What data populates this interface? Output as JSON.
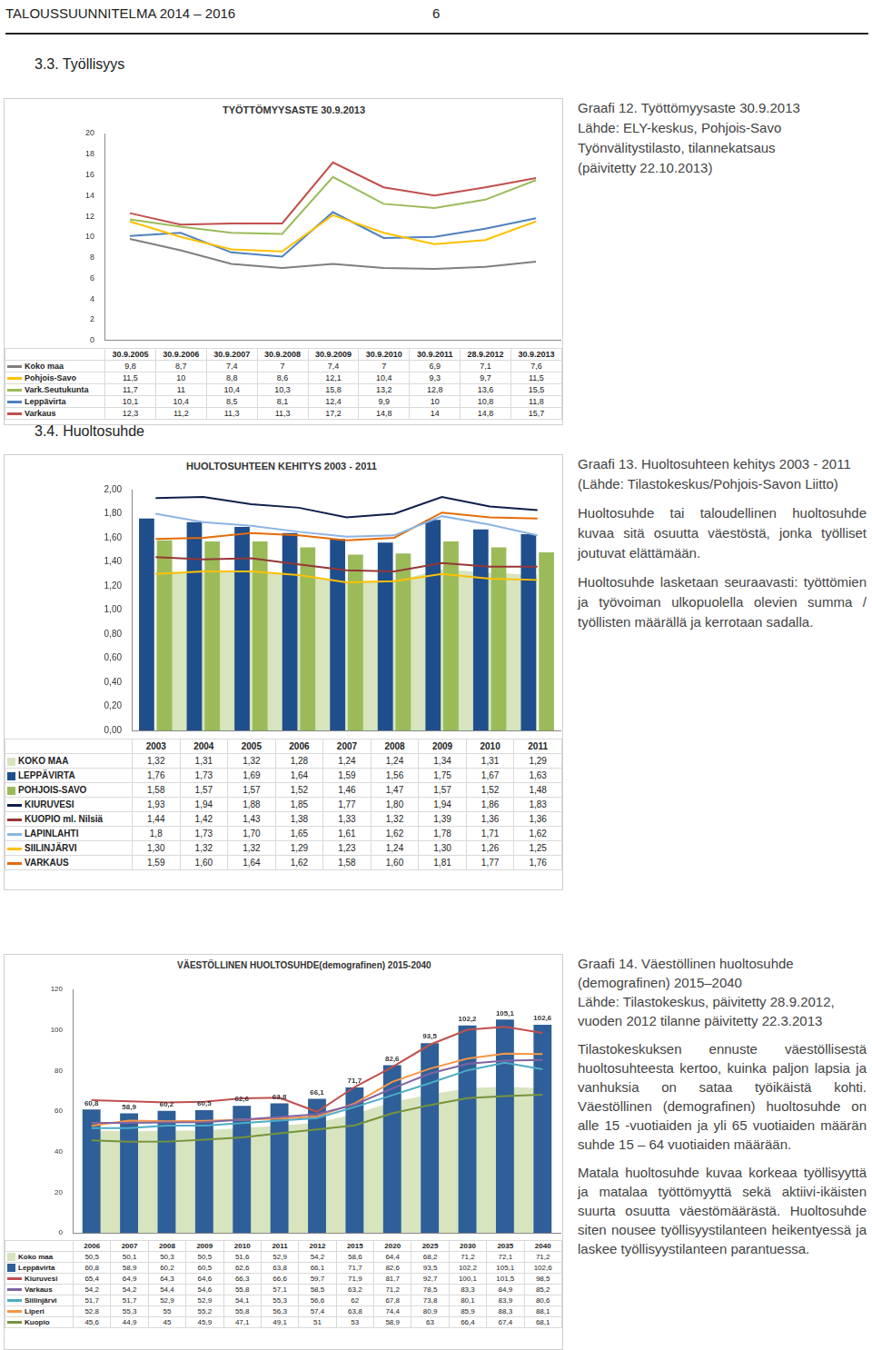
{
  "document": {
    "header": {
      "title": "TALOUSSUUNNITELMA 2014 – 2016",
      "page": "6"
    },
    "headings": [
      "3.3. Työllisyys",
      "3.4. Huoltosuhde"
    ],
    "captions": [
      {
        "lines": [
          "Graafi 12. Työttömyysaste 30.9.2013",
          "Lähde: ELY-keskus, Pohjois-Savo",
          "Työnvälitystilasto, tilannekatsaus",
          "(päivitetty 22.10.2013)"
        ],
        "paragraphs": []
      },
      {
        "lines": [
          "Graafi 13. Huoltosuhteen kehitys 2003 - 2011",
          "(Lähde: Tilastokeskus/Pohjois-Savon Liitto)"
        ],
        "paragraphs": [
          "Huoltosuhde tai taloudellinen huoltosuhde kuvaa sitä osuutta väestöstä, jonka työlliset joutuvat elättämään.",
          "Huoltosuhde lasketaan seuraavasti: työttömien ja työvoiman ulkopuolella olevien summa / työllisten määrällä ja kerrotaan sadalla."
        ]
      },
      {
        "lines": [
          "Graafi 14. Väestöllinen huoltosuhde (demografinen) 2015–2040",
          "Lähde: Tilastokeskus, päivitetty 28.9.2012, vuoden 2012 tilanne päivitetty 22.3.2013"
        ],
        "paragraphs": [
          "Tilastokeskuksen ennuste väestöllisestä huoltosuhteesta kertoo, kuinka paljon lapsia ja vanhuksia on sataa työikäistä kohti. Väestöllinen (demografinen) huoltosuhde on alle 15 -vuotiaiden ja yli 65 vuotiaiden määrän suhde 15 – 64 vuotiaiden määrään.",
          "Matala huoltosuhde kuvaa korkeaa työllisyyttä ja matalaa työttömyyttä sekä aktiivi-ikäisten suurta osuutta väestömäärästä. Huoltosuhde siten nousee työllisyystilanteen heikentyessä ja laskee työllisyystilanteen parantuessa."
        ]
      }
    ]
  },
  "chart_data": [
    {
      "type": "line",
      "title": "TYÖTTÖMYYSASTE 30.9.2013",
      "categories": [
        "30.9.2005",
        "30.9.2006",
        "30.9.2007",
        "30.9.2008",
        "30.9.2009",
        "30.9.2010",
        "30.9.2011",
        "28.9.2012",
        "30.9.2013"
      ],
      "series": [
        {
          "name": "Koko maa",
          "color": "#7f7f7f",
          "values": [
            9.8,
            8.7,
            7.4,
            7,
            7.4,
            7,
            6.9,
            7.1,
            7.6
          ],
          "value_labels": [
            "9,8",
            "8,7",
            "7,4",
            "7",
            "7,4",
            "7",
            "6,9",
            "7,1",
            "7,6"
          ]
        },
        {
          "name": "Pohjois-Savo",
          "color": "#ffc000",
          "values": [
            11.5,
            10,
            8.8,
            8.6,
            12.1,
            10.4,
            9.3,
            9.7,
            11.5
          ],
          "value_labels": [
            "11,5",
            "10",
            "8,8",
            "8,6",
            "12,1",
            "10,4",
            "9,3",
            "9,7",
            "11,5"
          ]
        },
        {
          "name": "Vark.Seutukunta",
          "color": "#9bbb59",
          "values": [
            11.7,
            11,
            10.4,
            10.3,
            15.8,
            13.2,
            12.8,
            13.6,
            15.5
          ],
          "value_labels": [
            "11,7",
            "11",
            "10,4",
            "10,3",
            "15,8",
            "13,2",
            "12,8",
            "13,6",
            "15,5"
          ]
        },
        {
          "name": "Leppävirta",
          "color": "#4f81bd",
          "values": [
            10.1,
            10.4,
            8.5,
            8.1,
            12.4,
            9.9,
            10,
            10.8,
            11.8
          ],
          "value_labels": [
            "10,1",
            "10,4",
            "8,5",
            "8,1",
            "12,4",
            "9,9",
            "10",
            "10,8",
            "11,8"
          ]
        },
        {
          "name": "Varkaus",
          "color": "#c0504d",
          "values": [
            12.3,
            11.2,
            11.3,
            11.3,
            17.2,
            14.8,
            14,
            14.8,
            15.7
          ],
          "value_labels": [
            "12,3",
            "11,2",
            "11,3",
            "11,3",
            "17,2",
            "14,8",
            "14",
            "14,8",
            "15,7"
          ]
        }
      ],
      "ylim": [
        0,
        20
      ],
      "yticks": [
        0,
        2,
        4,
        6,
        8,
        10,
        12,
        14,
        16,
        18,
        20
      ],
      "grid": false,
      "legend": "bottom"
    },
    {
      "type": "bar",
      "title": "HUOLTOSUHTEEN KEHITYS 2003 - 2011",
      "categories": [
        "2003",
        "2004",
        "2005",
        "2006",
        "2007",
        "2008",
        "2009",
        "2010",
        "2011"
      ],
      "series": [
        {
          "name": "KOKO MAA",
          "type": "area",
          "color": "#d7e4bd",
          "values": [
            1.32,
            1.31,
            1.32,
            1.28,
            1.24,
            1.24,
            1.34,
            1.31,
            1.29
          ],
          "value_labels": [
            "1,32",
            "1,31",
            "1,32",
            "1,28",
            "1,24",
            "1,24",
            "1,34",
            "1,31",
            "1,29"
          ]
        },
        {
          "name": "LEPPÄVIRTA",
          "type": "bar",
          "color": "#1f4e8c",
          "values": [
            1.76,
            1.73,
            1.69,
            1.64,
            1.59,
            1.56,
            1.75,
            1.67,
            1.63
          ],
          "value_labels": [
            "1,76",
            "1,73",
            "1,69",
            "1,64",
            "1,59",
            "1,56",
            "1,75",
            "1,67",
            "1,63"
          ]
        },
        {
          "name": "POHJOIS-SAVO",
          "type": "bar",
          "color": "#9bbb59",
          "values": [
            1.58,
            1.57,
            1.57,
            1.52,
            1.46,
            1.47,
            1.57,
            1.52,
            1.48
          ],
          "value_labels": [
            "1,58",
            "1,57",
            "1,57",
            "1,52",
            "1,46",
            "1,47",
            "1,57",
            "1,52",
            "1,48"
          ]
        },
        {
          "name": "KIURUVESI",
          "type": "line",
          "color": "#0f1f4b",
          "values": [
            1.93,
            1.94,
            1.88,
            1.85,
            1.77,
            1.8,
            1.94,
            1.86,
            1.83
          ],
          "value_labels": [
            "1,93",
            "1,94",
            "1,88",
            "1,85",
            "1,77",
            "1,80",
            "1,94",
            "1,86",
            "1,83"
          ]
        },
        {
          "name": "KUOPIO ml. Nilsiä",
          "type": "line",
          "color": "#953735",
          "values": [
            1.44,
            1.42,
            1.43,
            1.38,
            1.33,
            1.32,
            1.39,
            1.36,
            1.36
          ],
          "value_labels": [
            "1,44",
            "1,42",
            "1,43",
            "1,38",
            "1,33",
            "1,32",
            "1,39",
            "1,36",
            "1,36"
          ]
        },
        {
          "name": "LAPINLAHTI",
          "type": "line",
          "color": "#8db4e2",
          "values": [
            1.8,
            1.73,
            1.7,
            1.65,
            1.61,
            1.62,
            1.78,
            1.71,
            1.62
          ],
          "value_labels": [
            "1,8",
            "1,73",
            "1,70",
            "1,65",
            "1,61",
            "1,62",
            "1,78",
            "1,71",
            "1,62"
          ]
        },
        {
          "name": "SIILINJÄRVI",
          "type": "line",
          "color": "#ffc000",
          "values": [
            1.3,
            1.32,
            1.32,
            1.29,
            1.23,
            1.24,
            1.3,
            1.26,
            1.25
          ],
          "value_labels": [
            "1,30",
            "1,32",
            "1,32",
            "1,29",
            "1,23",
            "1,24",
            "1,30",
            "1,26",
            "1,25"
          ]
        },
        {
          "name": "VARKAUS",
          "type": "line",
          "color": "#e46c0a",
          "values": [
            1.59,
            1.6,
            1.64,
            1.62,
            1.58,
            1.6,
            1.81,
            1.77,
            1.76
          ],
          "value_labels": [
            "1,59",
            "1,60",
            "1,64",
            "1,62",
            "1,58",
            "1,60",
            "1,81",
            "1,77",
            "1,76"
          ]
        }
      ],
      "ylim": [
        0,
        2
      ],
      "yticks": [
        {
          "value": 0,
          "label": "0,00"
        },
        {
          "value": 0.2,
          "label": "0,20"
        },
        {
          "value": 0.4,
          "label": "0,40"
        },
        {
          "value": 0.6,
          "label": "0,60"
        },
        {
          "value": 0.8,
          "label": "0,80"
        },
        {
          "value": 1,
          "label": "1,00"
        },
        {
          "value": 1.2,
          "label": "1,20"
        },
        {
          "value": 1.4,
          "label": "1,40"
        },
        {
          "value": 1.6,
          "label": "1,60"
        },
        {
          "value": 1.8,
          "label": "1,80"
        },
        {
          "value": 2,
          "label": "2,00"
        }
      ],
      "grid": false,
      "legend": "bottom"
    },
    {
      "type": "bar",
      "title": "VÄESTÖLLINEN HUOLTOSUHDE(demografinen) 2015-2040",
      "categories": [
        "2006",
        "2007",
        "2008",
        "2009",
        "2010",
        "2011",
        "2012",
        "2015",
        "2020",
        "2025",
        "2030",
        "2035",
        "2040"
      ],
      "series": [
        {
          "name": "Koko maa",
          "type": "area",
          "color": "#d7e4bd",
          "values": [
            50.5,
            50.1,
            50.3,
            50.5,
            51.6,
            52.9,
            54.2,
            58.6,
            64.4,
            68.2,
            71.2,
            72.1,
            71.2
          ],
          "value_labels": [
            "50,5",
            "50,1",
            "50,3",
            "50,5",
            "51,6",
            "52,9",
            "54,2",
            "58,6",
            "64,4",
            "68,2",
            "71,2",
            "72,1",
            "71,2"
          ]
        },
        {
          "name": "Leppävirta",
          "type": "bar",
          "color": "#2f5f98",
          "values": [
            60.8,
            58.9,
            60.2,
            60.5,
            62.6,
            63.8,
            66.1,
            71.7,
            82.6,
            93.5,
            102.2,
            105.1,
            102.6
          ],
          "value_labels": [
            "60,8",
            "58,9",
            "60,2",
            "60,5",
            "62,6",
            "63,8",
            "66,1",
            "71,7",
            "82,6",
            "93,5",
            "102,2",
            "105,1",
            "102,6"
          ]
        },
        {
          "name": "Kiuruvesi",
          "type": "line",
          "color": "#c0504d",
          "values": [
            65.4,
            64.9,
            64.3,
            64.6,
            66.3,
            66.6,
            59.7,
            71.9,
            81.7,
            92.7,
            100.1,
            101.5,
            98.5
          ],
          "value_labels": [
            "65,4",
            "64,9",
            "64,3",
            "64,6",
            "66,3",
            "66,6",
            "59,7",
            "71,9",
            "81,7",
            "92,7",
            "100,1",
            "101,5",
            "98,5"
          ]
        },
        {
          "name": "Varkaus",
          "type": "line",
          "color": "#8064a2",
          "values": [
            54.2,
            54.2,
            54.4,
            54.6,
            55.8,
            57.1,
            58.5,
            63.2,
            71.2,
            78.5,
            83.3,
            84.9,
            85.2
          ],
          "value_labels": [
            "54,2",
            "54,2",
            "54,4",
            "54,6",
            "55,8",
            "57,1",
            "58,5",
            "63,2",
            "71,2",
            "78,5",
            "83,3",
            "84,9",
            "85,2"
          ]
        },
        {
          "name": "Siilinjärvi",
          "type": "line",
          "color": "#4bacc6",
          "values": [
            51.7,
            51.7,
            52.9,
            52.9,
            54.1,
            55.3,
            56.6,
            62,
            67.8,
            73.8,
            80.1,
            83.9,
            80.6
          ],
          "value_labels": [
            "51,7",
            "51,7",
            "52,9",
            "52,9",
            "54,1",
            "55,3",
            "56,6",
            "62",
            "67,8",
            "73,8",
            "80,1",
            "83,9",
            "80,6"
          ]
        },
        {
          "name": "Liperi",
          "type": "line",
          "color": "#f79646",
          "values": [
            52.8,
            55.3,
            55,
            55.2,
            55.8,
            56.3,
            57.4,
            63.8,
            74.4,
            80.9,
            85.9,
            88.3,
            88.1
          ],
          "value_labels": [
            "52,8",
            "55,3",
            "55",
            "55,2",
            "55,8",
            "56,3",
            "57,4",
            "63,8",
            "74,4",
            "80,9",
            "85,9",
            "88,3",
            "88,1"
          ]
        },
        {
          "name": "Kuopio",
          "type": "line",
          "color": "#77933c",
          "values": [
            45.6,
            44.9,
            45,
            45.9,
            47.1,
            49.1,
            51,
            53,
            58.9,
            63,
            66.4,
            67.4,
            68.1
          ],
          "value_labels": [
            "45,6",
            "44,9",
            "45",
            "45,9",
            "47,1",
            "49,1",
            "51",
            "53",
            "58,9",
            "63",
            "66,4",
            "67,4",
            "68,1"
          ]
        }
      ],
      "ylim": [
        0,
        120
      ],
      "yticks": [
        0,
        20,
        40,
        60,
        80,
        100,
        120
      ],
      "grid": false,
      "legend": "bottom",
      "data_labels": true
    }
  ]
}
